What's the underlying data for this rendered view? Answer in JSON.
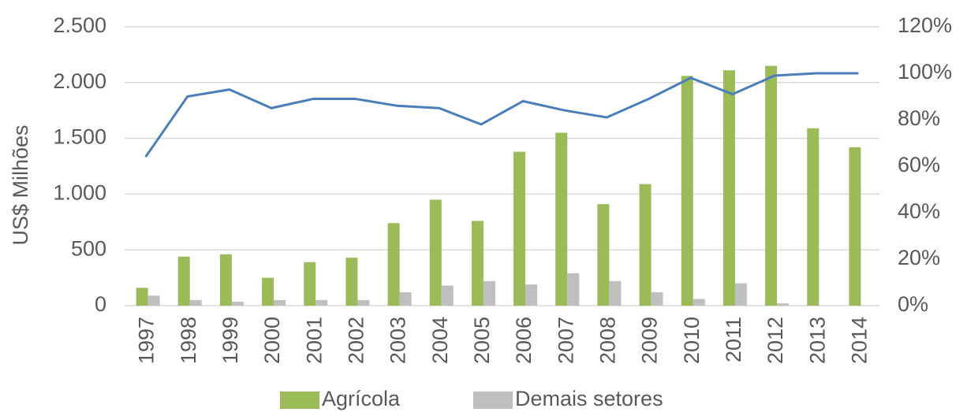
{
  "chart_data": {
    "type": "bar_line",
    "y_label": "US$ Milhões",
    "categories": [
      "1997",
      "1998",
      "1999",
      "2000",
      "2001",
      "2002",
      "2003",
      "2004",
      "2005",
      "2006",
      "2007",
      "2008",
      "2009",
      "2010",
      "2011",
      "2012",
      "2013",
      "2014"
    ],
    "series": [
      {
        "name": "Agrícola",
        "color": "#9bbb59",
        "values": [
          160,
          440,
          460,
          250,
          390,
          430,
          740,
          950,
          760,
          1380,
          1550,
          910,
          1090,
          2060,
          2110,
          2150,
          1590,
          1420
        ]
      },
      {
        "name": "Demais setores",
        "color": "#bfbfbf",
        "values": [
          90,
          50,
          35,
          50,
          50,
          50,
          120,
          180,
          220,
          190,
          290,
          220,
          120,
          60,
          200,
          20,
          0,
          0
        ]
      },
      {
        "color": "#4a7ebb",
        "axis": "y2",
        "values": [
          64,
          90,
          93,
          85,
          89,
          89,
          86,
          85,
          78,
          88,
          84,
          81,
          89,
          98,
          91,
          99,
          100,
          100
        ]
      }
    ],
    "ylim": [
      0,
      2500
    ],
    "yticks": [
      0,
      {
        "value": 500,
        "label": "500"
      },
      {
        "value": 1000,
        "label": "1.000"
      },
      {
        "value": 1500,
        "label": "1.500"
      },
      {
        "value": 2000,
        "label": "2.000"
      },
      {
        "value": 2500,
        "label": "2.500"
      }
    ],
    "y2lim": [
      0,
      120
    ],
    "y2ticks": [
      {
        "value": 0,
        "label": "0%"
      },
      {
        "value": 20,
        "label": "20%"
      },
      {
        "value": 40,
        "label": "40%"
      },
      {
        "value": 60,
        "label": "60%"
      },
      {
        "value": 80,
        "label": "80%"
      },
      {
        "value": 100,
        "label": "100%"
      },
      {
        "value": 120,
        "label": "120%"
      }
    ],
    "grid": true
  }
}
